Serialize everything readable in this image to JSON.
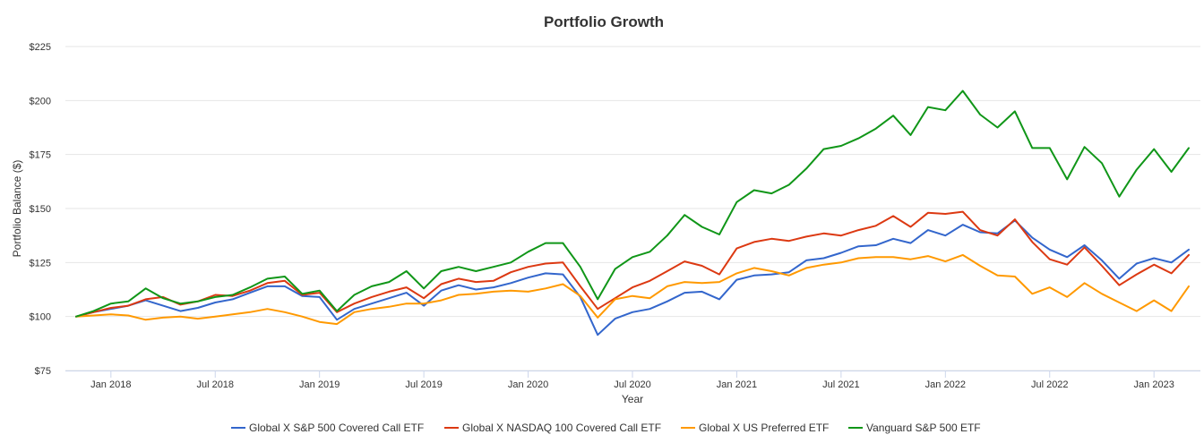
{
  "chart_data": {
    "type": "line",
    "title": "Portfolio Growth",
    "xlabel": "Year",
    "ylabel": "Portfolio Balance ($)",
    "ylim": [
      75,
      225
    ],
    "yticks": [
      75,
      100,
      125,
      150,
      175,
      200,
      225
    ],
    "ytick_labels": [
      "$75",
      "$100",
      "$125",
      "$150",
      "$175",
      "$200",
      "$225"
    ],
    "xticks": [
      {
        "index": 2,
        "label": "Jan 2018"
      },
      {
        "index": 8,
        "label": "Jul 2018"
      },
      {
        "index": 14,
        "label": "Jan 2019"
      },
      {
        "index": 20,
        "label": "Jul 2019"
      },
      {
        "index": 26,
        "label": "Jan 2020"
      },
      {
        "index": 32,
        "label": "Jul 2020"
      },
      {
        "index": 38,
        "label": "Jan 2021"
      },
      {
        "index": 44,
        "label": "Jul 2021"
      },
      {
        "index": 50,
        "label": "Jan 2022"
      },
      {
        "index": 56,
        "label": "Jul 2022"
      },
      {
        "index": 62,
        "label": "Jan 2023"
      }
    ],
    "x_start": "Nov 2017",
    "x_end": "Feb 2023",
    "grid": true,
    "legend_position": "bottom",
    "series": [
      {
        "name": "Global X S&P 500 Covered Call ETF",
        "color": "#3366cc",
        "values": [
          100,
          102,
          103.5,
          105,
          107.5,
          105,
          102.5,
          104,
          106.5,
          108,
          111,
          114,
          114,
          109.5,
          109,
          98.5,
          103.5,
          106,
          108.5,
          111,
          105,
          112,
          114.5,
          112.5,
          113.5,
          115.5,
          118,
          120,
          119.5,
          109,
          91.5,
          99,
          102,
          103.5,
          107,
          111,
          111.5,
          108,
          117,
          119,
          119.5,
          120.5,
          126,
          127,
          129.5,
          132.5,
          133,
          136,
          134,
          140,
          137.5,
          142.5,
          139,
          138.5,
          144.5,
          136.5,
          131,
          127.5,
          133,
          126,
          117.5,
          124.5,
          127,
          125,
          131
        ]
      },
      {
        "name": "Global X NASDAQ 100 Covered Call ETF",
        "color": "#dc3912",
        "values": [
          100,
          102,
          104,
          105,
          108,
          109,
          105.5,
          107,
          110,
          109.5,
          112,
          115.5,
          116.5,
          110,
          111,
          102,
          106,
          109,
          111.5,
          113.5,
          108.5,
          115,
          117.5,
          116,
          116.5,
          120.5,
          123,
          124.5,
          125,
          114,
          103.5,
          108.5,
          113.5,
          116.5,
          121,
          125.5,
          123.5,
          119.5,
          131.5,
          134.5,
          136,
          135,
          137,
          138.5,
          137.5,
          140,
          142,
          146.5,
          141.5,
          148,
          147.5,
          148.5,
          140,
          137.5,
          145,
          134.5,
          126.5,
          124,
          132,
          123.5,
          114.5,
          119.5,
          124,
          120,
          128.5
        ]
      },
      {
        "name": "Global X US Preferred ETF",
        "color": "#ff9900",
        "values": [
          100,
          100.5,
          101,
          100.5,
          98.5,
          99.5,
          100,
          99,
          100,
          101,
          102,
          103.5,
          102,
          100,
          97.5,
          96.5,
          102,
          103.5,
          104.5,
          106,
          106,
          107.5,
          110,
          110.5,
          111.5,
          112,
          111.5,
          113,
          115,
          109.5,
          99.5,
          108,
          109.5,
          108.5,
          114,
          116,
          115.5,
          116,
          120,
          122.5,
          121,
          119,
          122.5,
          124,
          125,
          127,
          127.5,
          127.5,
          126.5,
          128,
          125.5,
          128.5,
          123.5,
          119,
          118.5,
          110.5,
          113.5,
          109,
          115.5,
          110.5,
          106.5,
          102.5,
          107.5,
          102.5,
          114
        ]
      },
      {
        "name": "Vanguard S&P 500 ETF",
        "color": "#109618",
        "values": [
          100,
          102.5,
          106,
          107,
          113,
          108.5,
          106,
          107,
          109,
          110,
          113.5,
          117.5,
          118.5,
          110.5,
          112,
          102.5,
          110,
          114,
          116,
          121,
          113,
          121,
          123,
          121,
          123,
          125,
          130,
          134,
          134,
          123,
          108,
          122,
          127.5,
          130,
          137.5,
          147,
          141.5,
          138,
          153,
          158.5,
          157,
          161,
          168.5,
          177.5,
          179,
          182.5,
          187,
          193,
          184,
          197,
          195.5,
          204.5,
          193.5,
          187.5,
          195,
          178,
          178,
          163.5,
          178.5,
          171,
          155.5,
          168,
          177.5,
          167,
          178
        ]
      }
    ]
  }
}
